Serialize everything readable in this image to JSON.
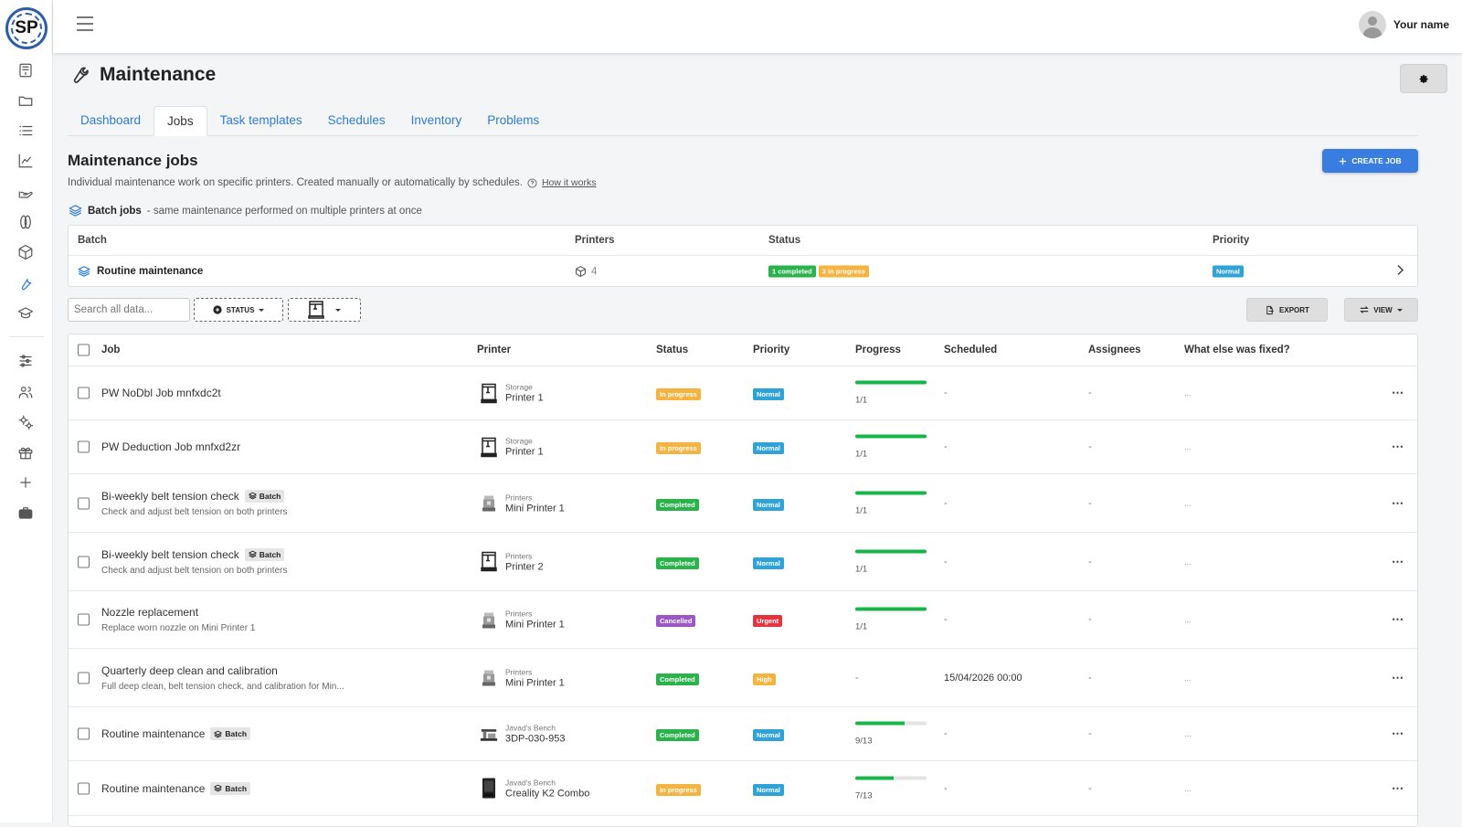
{
  "app": {
    "logo_text": "SP",
    "user_name": "Your name"
  },
  "rail_icons": [
    "dashboard-icon",
    "folder-icon",
    "list-icon",
    "chart-icon",
    "hand-icon",
    "spool-icon",
    "box-icon",
    "wrench-icon",
    "school-icon",
    "sliders-icon",
    "users-icon",
    "cogs-icon",
    "gift-icon",
    "plus-icon",
    "briefcase-icon"
  ],
  "page": {
    "title": "Maintenance"
  },
  "tabs": [
    {
      "label": "Dashboard",
      "active": false
    },
    {
      "label": "Jobs",
      "active": true
    },
    {
      "label": "Task templates",
      "active": false
    },
    {
      "label": "Schedules",
      "active": false
    },
    {
      "label": "Inventory",
      "active": false
    },
    {
      "label": "Problems",
      "active": false
    }
  ],
  "section": {
    "title": "Maintenance jobs",
    "subtitle": "Individual maintenance work on specific printers. Created manually or automatically by schedules.",
    "how_it_works": "How it works",
    "create_button": "CREATE JOB"
  },
  "batch": {
    "label": "Batch jobs",
    "label_note": "- same maintenance performed on multiple printers at once",
    "headers": {
      "batch": "Batch",
      "printers": "Printers",
      "status": "Status",
      "priority": "Priority"
    },
    "row": {
      "name": "Routine maintenance",
      "printers": "4",
      "status_completed": "1 completed",
      "status_progress": "3 in progress",
      "priority": "Normal"
    }
  },
  "toolbar": {
    "search_placeholder": "Search all data...",
    "status_filter": "STATUS",
    "export": "EXPORT",
    "view": "VIEW"
  },
  "jobs": {
    "headers": {
      "job": "Job",
      "printer": "Printer",
      "status": "Status",
      "priority": "Priority",
      "progress": "Progress",
      "scheduled": "Scheduled",
      "assignees": "Assignees",
      "fixed": "What else was fixed?"
    },
    "batch_tag": "Batch",
    "rows": [
      {
        "name": "PW NoDbl Job mnfxdc2t",
        "desc": "",
        "batch": false,
        "group": "Storage",
        "printer": "Printer 1",
        "printer_icon": "frame-printer-icon",
        "status": "In progress",
        "status_color": "#f5b441",
        "priority": "Normal",
        "priority_color": "#2fa3d8",
        "progress": 1.0,
        "progress_text": "1/1",
        "scheduled": "-",
        "assignees": "-",
        "fixed": "..."
      },
      {
        "name": "PW Deduction Job mnfxd2zr",
        "desc": "",
        "batch": false,
        "group": "Storage",
        "printer": "Printer 1",
        "printer_icon": "frame-printer-icon",
        "status": "In progress",
        "status_color": "#f5b441",
        "priority": "Normal",
        "priority_color": "#2fa3d8",
        "progress": 1.0,
        "progress_text": "1/1",
        "scheduled": "-",
        "assignees": "-",
        "fixed": "..."
      },
      {
        "name": "Bi-weekly belt tension check",
        "desc": "Check and adjust belt tension on both printers",
        "batch": true,
        "group": "Printers",
        "printer": "Mini Printer 1",
        "printer_icon": "mini-printer-icon",
        "status": "Completed",
        "status_color": "#2ab24b",
        "priority": "Normal",
        "priority_color": "#2fa3d8",
        "progress": 1.0,
        "progress_text": "1/1",
        "scheduled": "-",
        "assignees": "-",
        "fixed": "..."
      },
      {
        "name": "Bi-weekly belt tension check",
        "desc": "Check and adjust belt tension on both printers",
        "batch": true,
        "group": "Printers",
        "printer": "Printer 2",
        "printer_icon": "frame-printer-icon",
        "status": "Completed",
        "status_color": "#2ab24b",
        "priority": "Normal",
        "priority_color": "#2fa3d8",
        "progress": 1.0,
        "progress_text": "1/1",
        "scheduled": "-",
        "assignees": "-",
        "fixed": "..."
      },
      {
        "name": "Nozzle replacement",
        "desc": "Replace worn nozzle on Mini Printer 1",
        "batch": false,
        "group": "Printers",
        "printer": "Mini Printer 1",
        "printer_icon": "mini-printer-icon",
        "status": "Cancelled",
        "status_color": "#9b57c6",
        "priority": "Urgent",
        "priority_color": "#e3343f",
        "progress": 1.0,
        "progress_text": "1/1",
        "scheduled": "-",
        "assignees": "-",
        "fixed": "..."
      },
      {
        "name": "Quarterly deep clean and calibration",
        "desc": "Full deep clean, belt tension check, and calibration for Min...",
        "batch": false,
        "group": "Printers",
        "printer": "Mini Printer 1",
        "printer_icon": "mini-printer-icon",
        "status": "Completed",
        "status_color": "#2ab24b",
        "priority": "High",
        "priority_color": "#f5b441",
        "progress": null,
        "progress_text": "-",
        "scheduled": "15/04/2026 00:00",
        "assignees": "-",
        "fixed": "..."
      },
      {
        "name": "Routine maintenance",
        "desc": "",
        "batch": true,
        "group": "Javad's Bench",
        "printer": "3DP-030-953",
        "printer_icon": "bench-printer-icon",
        "status": "Completed",
        "status_color": "#2ab24b",
        "priority": "Normal",
        "priority_color": "#2fa3d8",
        "progress": 0.6923,
        "progress_text": "9/13",
        "scheduled": "-",
        "assignees": "-",
        "fixed": "..."
      },
      {
        "name": "Routine maintenance",
        "desc": "",
        "batch": true,
        "group": "Javad's Bench",
        "printer": "Creality K2 Combo",
        "printer_icon": "enclosed-printer-icon",
        "status": "In progress",
        "status_color": "#f5b441",
        "priority": "Normal",
        "priority_color": "#2fa3d8",
        "progress": 0.5385,
        "progress_text": "7/13",
        "scheduled": "-",
        "assignees": "-",
        "fixed": "..."
      }
    ]
  }
}
